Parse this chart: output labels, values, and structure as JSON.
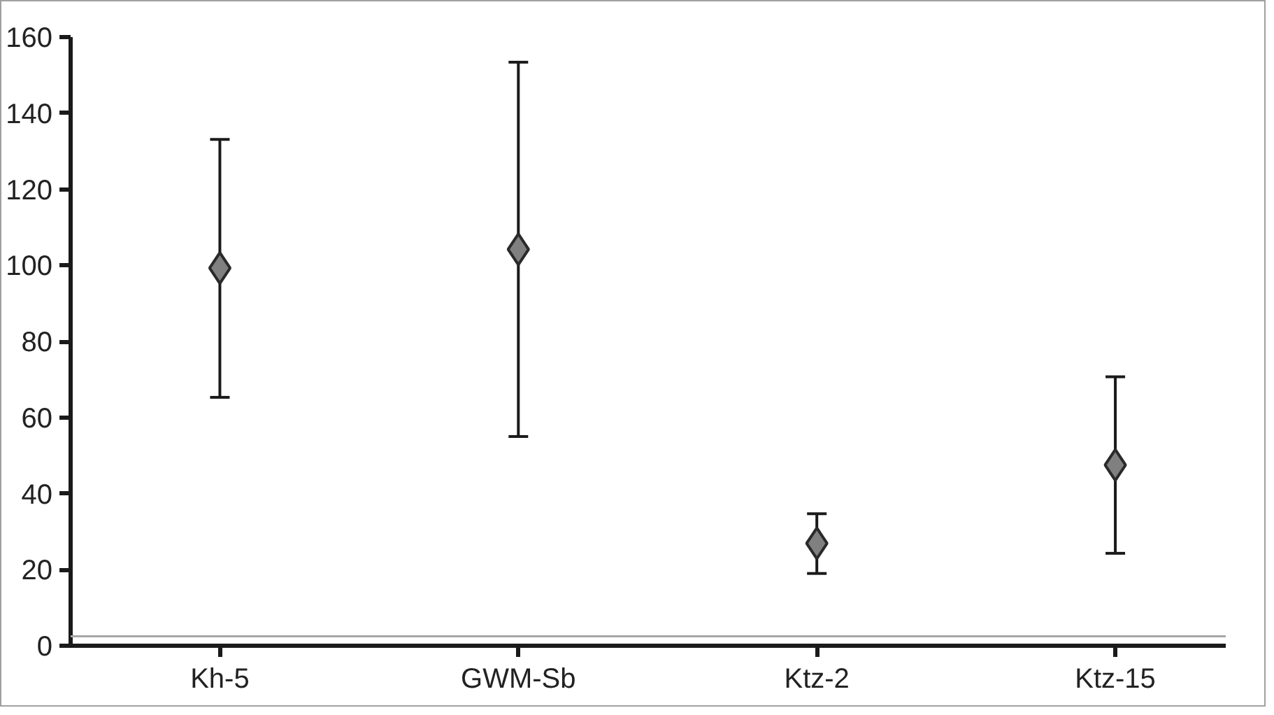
{
  "chart_data": {
    "type": "scatter",
    "categories": [
      "Kh-5",
      "GWM-Sb",
      "Ktz-2",
      "Ktz-15"
    ],
    "series": [
      {
        "color": "#808080",
        "values": [
          99.3,
          104.2,
          26.9,
          47.5
        ],
        "errors": [
          [
            65.3,
            133.1
          ],
          [
            55.0,
            153.4
          ],
          [
            19.0,
            34.7
          ],
          [
            24.3,
            70.7
          ]
        ]
      }
    ],
    "marker": "diamond",
    "ylim": [
      0,
      160
    ],
    "yticks": [
      0,
      20,
      40,
      60,
      80,
      100,
      120,
      140,
      160
    ],
    "grid": false,
    "ref_lines": [
      {
        "axis": "y",
        "value": 2.5,
        "color": "#a6a6a6"
      }
    ]
  }
}
